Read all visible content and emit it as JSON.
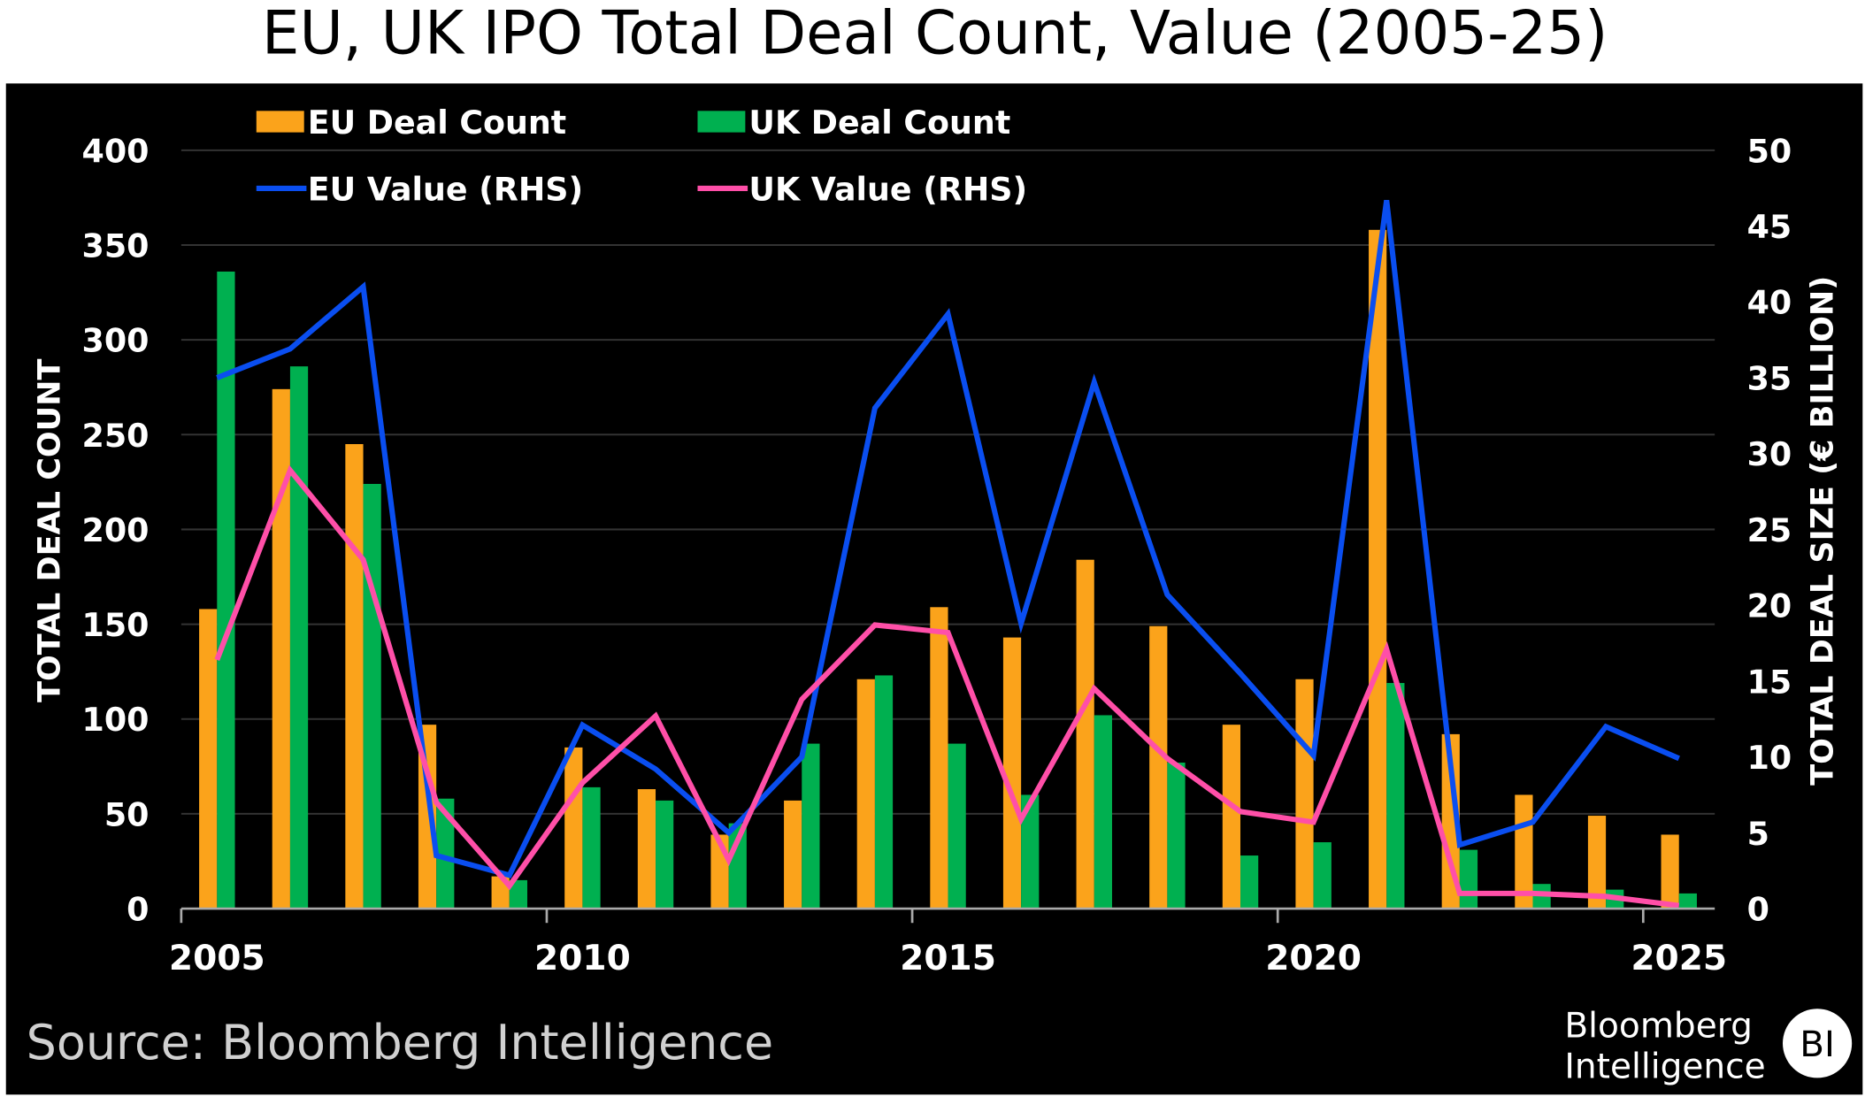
{
  "chart_data": {
    "type": "bar",
    "title": "EU, UK IPO Total Deal Count, Value (2005-25)",
    "ylabel": "TOTAL DEAL COUNT",
    "y2label": "TOTAL DEAL SIZE (€ BILLION)",
    "ylim": [
      0,
      400
    ],
    "y2lim": [
      0,
      50
    ],
    "yticks": [
      "0",
      "50",
      "100",
      "150",
      "200",
      "250",
      "300",
      "350",
      "400"
    ],
    "y2ticks": [
      "0",
      "5",
      "10",
      "15",
      "20",
      "25",
      "30",
      "35",
      "40",
      "45",
      "50"
    ],
    "xticks": [
      "2005",
      "2010",
      "2015",
      "2020",
      "2025"
    ],
    "x": [
      2005,
      2006,
      2007,
      2008,
      2009,
      2010,
      2011,
      2012,
      2013,
      2014,
      2015,
      2016,
      2017,
      2018,
      2019,
      2020,
      2021,
      2022,
      2023,
      2024,
      2025
    ],
    "grid": true,
    "legend": "top-left",
    "series": [
      {
        "name": "EU Deal Count",
        "kind": "bar",
        "axis": "left",
        "color": "#FBA31B",
        "values": [
          158,
          274,
          245,
          97,
          17,
          85,
          63,
          39,
          57,
          121,
          159,
          143,
          184,
          149,
          97,
          121,
          358,
          92,
          60,
          49,
          39
        ]
      },
      {
        "name": "UK Deal Count",
        "kind": "bar",
        "axis": "left",
        "color": "#00B050",
        "values": [
          336,
          286,
          224,
          58,
          15,
          64,
          57,
          45,
          87,
          123,
          87,
          60,
          102,
          77,
          28,
          35,
          119,
          31,
          13,
          10,
          8
        ]
      },
      {
        "name": "EU Value (RHS)",
        "kind": "line",
        "axis": "right",
        "color": "#0A4EF0",
        "values": [
          35,
          36.9,
          41,
          3.5,
          2.2,
          12.1,
          9.2,
          5,
          10,
          33,
          39.2,
          18.8,
          34.7,
          20.7,
          15.5,
          10.1,
          46.7,
          4.2,
          5.7,
          12,
          9.9
        ]
      },
      {
        "name": "UK Value (RHS)",
        "kind": "line",
        "axis": "right",
        "color": "#FF4FA8",
        "values": [
          16.4,
          28.9,
          23,
          7,
          1.5,
          8.3,
          12.7,
          3.2,
          13.8,
          18.7,
          18.2,
          5.9,
          14.5,
          9.9,
          6.4,
          5.7,
          17.1,
          1,
          1,
          0.8,
          0.2
        ]
      }
    ]
  },
  "source": "Source: Bloomberg Intelligence",
  "logo": {
    "text_line1": "Bloomberg",
    "text_line2": "Intelligence",
    "badge": "BI"
  }
}
